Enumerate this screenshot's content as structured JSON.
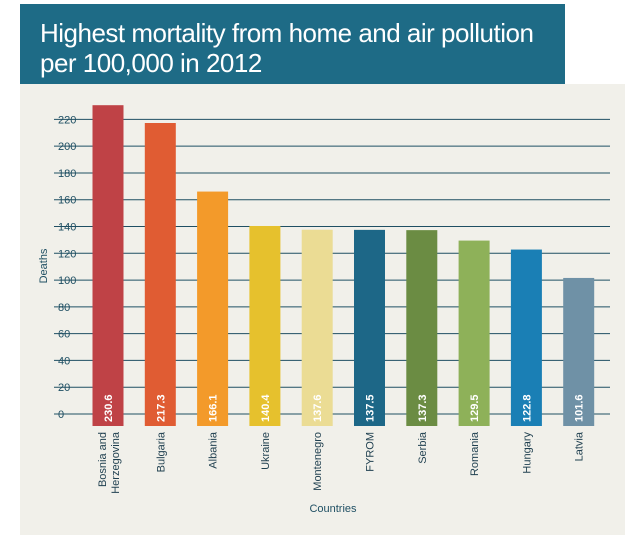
{
  "header": {
    "title": "Highest mortality from home and air pollution\nper 100,000 in 2012",
    "bg_color": "#1e6b86"
  },
  "chart_data": {
    "type": "bar",
    "title": "Highest mortality from home and air pollution per 100,000 in 2012",
    "xlabel": "Countries",
    "ylabel": "Deaths",
    "ylim": [
      0,
      230
    ],
    "yticks": [
      0,
      20,
      40,
      60,
      80,
      100,
      120,
      140,
      160,
      180,
      200,
      220
    ],
    "grid": true,
    "categories": [
      "Bosnia and Herzegovina",
      "Bulgaria",
      "Albania",
      "Ukraine",
      "Montenegro",
      "FYROM",
      "Serbia",
      "Romania",
      "Hungary",
      "Latvia"
    ],
    "values": [
      230.6,
      217.3,
      166.1,
      140.4,
      137.6,
      137.5,
      137.3,
      129.5,
      122.8,
      101.6
    ],
    "value_labels": [
      "230.6",
      "217.3",
      "166.1",
      "140.4",
      "137.6",
      "137.5",
      "137.3",
      "129.5",
      "122.8",
      "101.6"
    ],
    "category_lines": [
      [
        "Bosnia and",
        "Herzegovina"
      ],
      [
        "Bulgaria"
      ],
      [
        "Albania"
      ],
      [
        "Ukraine"
      ],
      [
        "Montenegro"
      ],
      [
        "FYROM"
      ],
      [
        "Serbia"
      ],
      [
        "Romania"
      ],
      [
        "Hungary"
      ],
      [
        "Latvia"
      ]
    ],
    "colors": [
      "#bf4246",
      "#e05c33",
      "#f39a2a",
      "#e6c12d",
      "#ebdc94",
      "#1d6787",
      "#6b8c43",
      "#8eb159",
      "#1a7fb5",
      "#6f91a6"
    ]
  }
}
